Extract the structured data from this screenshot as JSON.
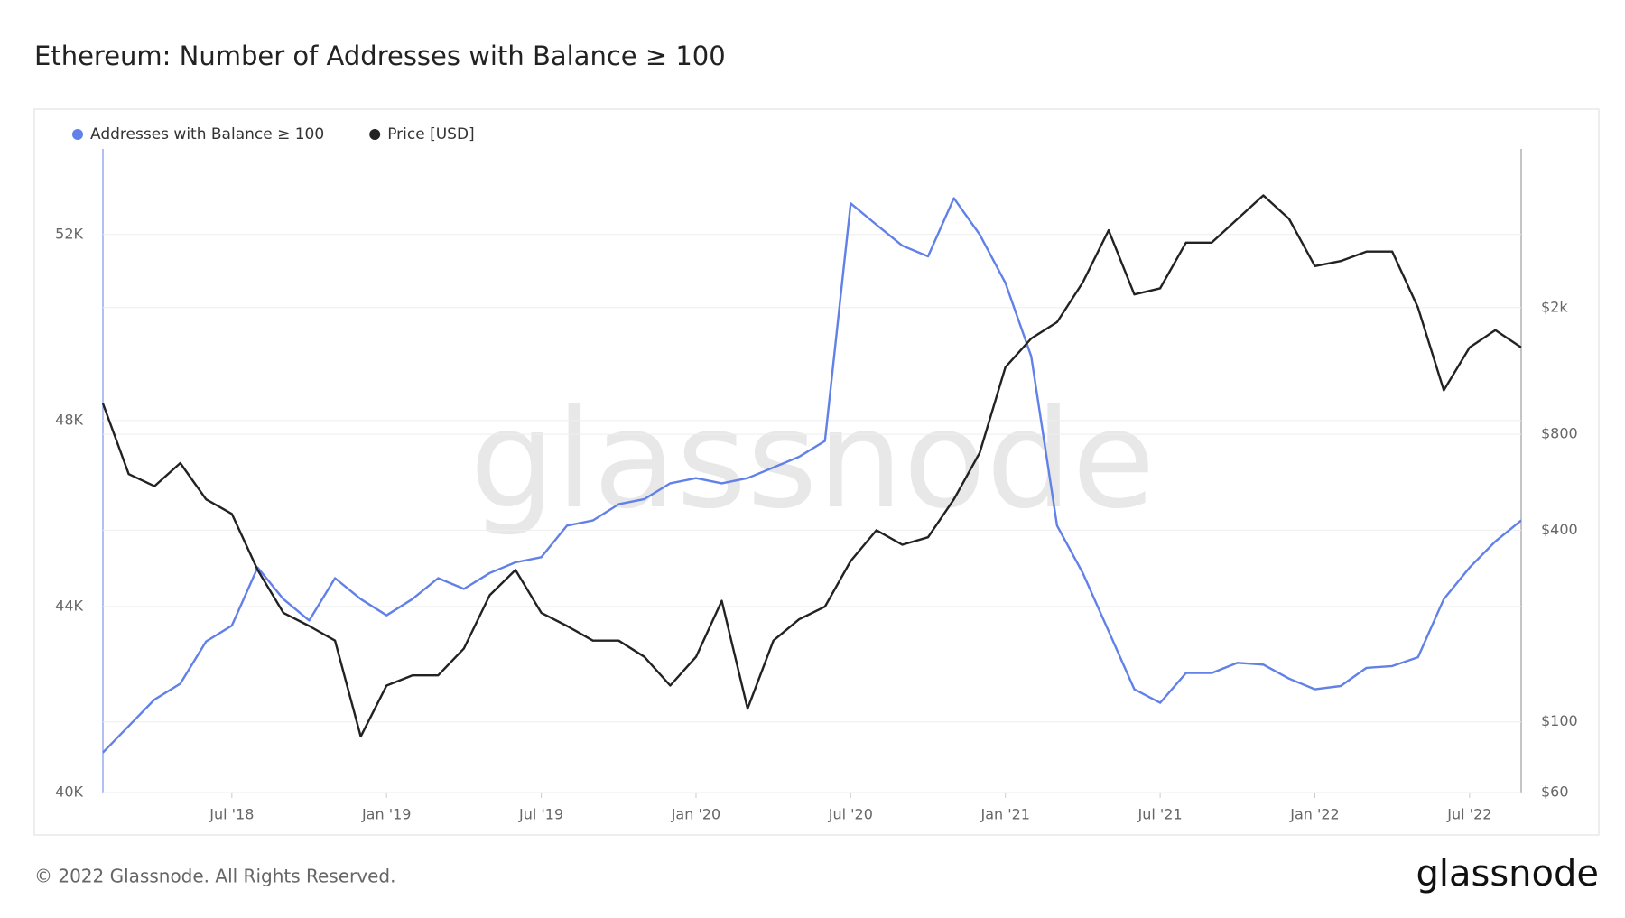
{
  "chart_data": {
    "type": "line",
    "title": "Ethereum: Number of Addresses with Balance ≥ 100",
    "watermark": "glassnode",
    "footer": "© 2022 Glassnode. All Rights Reserved.",
    "logo": "glassnode",
    "x": [
      "2018-02",
      "2018-03",
      "2018-04",
      "2018-05",
      "2018-06",
      "2018-07",
      "2018-08",
      "2018-09",
      "2018-10",
      "2018-11",
      "2018-12",
      "2019-01",
      "2019-02",
      "2019-03",
      "2019-04",
      "2019-05",
      "2019-06",
      "2019-07",
      "2019-08",
      "2019-09",
      "2019-10",
      "2019-11",
      "2019-12",
      "2020-01",
      "2020-02",
      "2020-03",
      "2020-04",
      "2020-05",
      "2020-06",
      "2020-07",
      "2020-08",
      "2020-09",
      "2020-10",
      "2020-11",
      "2020-12",
      "2021-01",
      "2021-02",
      "2021-03",
      "2021-04",
      "2021-05",
      "2021-06",
      "2021-07",
      "2021-08",
      "2021-09",
      "2021-10",
      "2021-11",
      "2021-12",
      "2022-01",
      "2022-02",
      "2022-03",
      "2022-04",
      "2022-05",
      "2022-06",
      "2022-07",
      "2022-08",
      "2022-09"
    ],
    "series": [
      {
        "name": "Addresses with Balance ≥ 100",
        "color": "#6180e8",
        "values": [
          40860,
          41430,
          42000,
          42340,
          43250,
          43590,
          44840,
          44160,
          43700,
          44610,
          44160,
          43810,
          44160,
          44610,
          44380,
          44720,
          44950,
          45060,
          45740,
          45850,
          46200,
          46310,
          46650,
          46760,
          46650,
          46760,
          46990,
          47220,
          47560,
          52670,
          52210,
          51760,
          51530,
          52780,
          52000,
          50960,
          49380,
          45740,
          44720,
          43470,
          42220,
          41930,
          42570,
          42570,
          42790,
          42750,
          42450,
          42220,
          42290,
          42680,
          42720,
          42910,
          44160,
          44840,
          45400,
          45850
        ]
      },
      {
        "name": "Price [USD]",
        "color": "#222222",
        "axis": "y2",
        "values": [
          1000,
          600,
          550,
          650,
          500,
          450,
          300,
          220,
          200,
          180,
          90,
          130,
          140,
          140,
          170,
          250,
          300,
          220,
          200,
          180,
          180,
          160,
          130,
          160,
          240,
          110,
          180,
          210,
          230,
          320,
          400,
          360,
          380,
          500,
          700,
          1300,
          1600,
          1800,
          2400,
          3500,
          2200,
          2300,
          3200,
          3200,
          3800,
          4500,
          3800,
          2700,
          2800,
          3000,
          3000,
          2000,
          1100,
          1500,
          1700,
          1500
        ]
      }
    ],
    "xlim": [
      "2018-02",
      "2022-09"
    ],
    "xticks": [
      {
        "value": "2018-07",
        "label": "Jul '18"
      },
      {
        "value": "2019-01",
        "label": "Jan '19"
      },
      {
        "value": "2019-07",
        "label": "Jul '19"
      },
      {
        "value": "2020-01",
        "label": "Jan '20"
      },
      {
        "value": "2020-07",
        "label": "Jul '20"
      },
      {
        "value": "2021-01",
        "label": "Jan '21"
      },
      {
        "value": "2021-07",
        "label": "Jul '21"
      },
      {
        "value": "2022-01",
        "label": "Jan '22"
      },
      {
        "value": "2022-07",
        "label": "Jul '22"
      }
    ],
    "ylim": [
      40000,
      53840
    ],
    "yticks": [
      {
        "value": 40000,
        "label": "40K"
      },
      {
        "value": 44000,
        "label": "44K"
      },
      {
        "value": 48000,
        "label": "48K"
      },
      {
        "value": 52000,
        "label": "52K"
      }
    ],
    "y2lim": [
      60,
      6300
    ],
    "y2log": true,
    "y2ticks": [
      {
        "value": 60,
        "label": "$60"
      },
      {
        "value": 100,
        "label": "$100"
      },
      {
        "value": 400,
        "label": "$400"
      },
      {
        "value": 800,
        "label": "$800"
      },
      {
        "value": 2000,
        "label": "$2k"
      }
    ],
    "grid": true
  }
}
